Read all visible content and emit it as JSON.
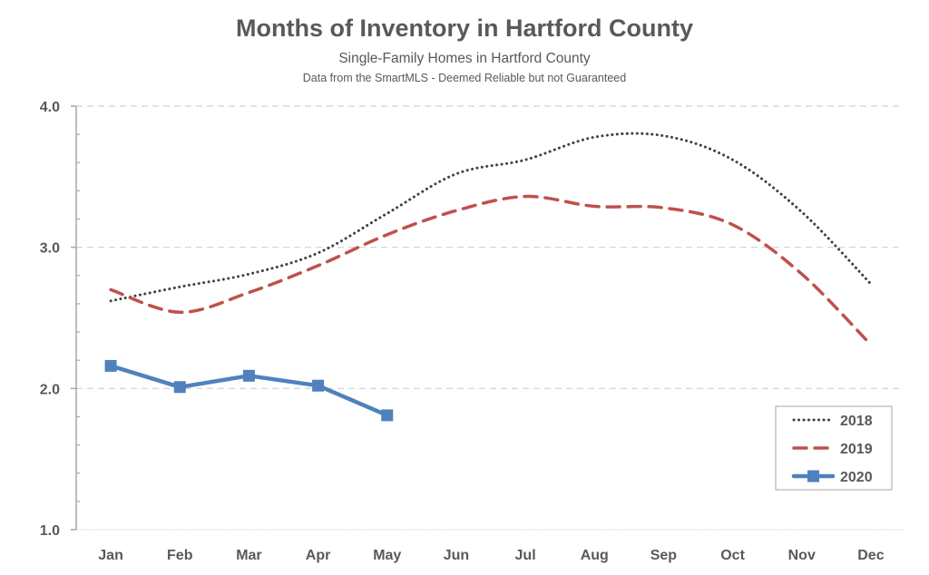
{
  "chart_data": {
    "type": "line",
    "title": "Months of Inventory in Hartford County",
    "subtitle": "Single-Family Homes in Hartford County",
    "source_note": "Data from the SmartMLS - Deemed Reliable but not Guaranteed",
    "xlabel": "",
    "ylabel": "",
    "categories": [
      "Jan",
      "Feb",
      "Mar",
      "Apr",
      "May",
      "Jun",
      "Jul",
      "Aug",
      "Sep",
      "Oct",
      "Nov",
      "Dec"
    ],
    "ylim": [
      1.0,
      4.0
    ],
    "yticks": [
      "1.0",
      "2.0",
      "3.0",
      "4.0"
    ],
    "ytick_values": [
      1.0,
      2.0,
      3.0,
      4.0
    ],
    "y_minor_step": 0.2,
    "grid": true,
    "legend_position": "bottom-right",
    "series": [
      {
        "name": "2018",
        "style": "dotted",
        "color": "#404040",
        "values": [
          2.62,
          2.72,
          2.81,
          2.96,
          3.24,
          3.52,
          3.62,
          3.78,
          3.79,
          3.62,
          3.25,
          2.74
        ]
      },
      {
        "name": "2019",
        "style": "dashed",
        "color": "#c0504d",
        "values": [
          2.7,
          2.54,
          2.68,
          2.87,
          3.09,
          3.26,
          3.36,
          3.29,
          3.28,
          3.16,
          2.81,
          2.31
        ]
      },
      {
        "name": "2020",
        "style": "solid-square-markers",
        "color": "#4f81bd",
        "values": [
          2.16,
          2.01,
          2.09,
          2.02,
          1.81,
          null,
          null,
          null,
          null,
          null,
          null,
          null
        ]
      }
    ]
  }
}
